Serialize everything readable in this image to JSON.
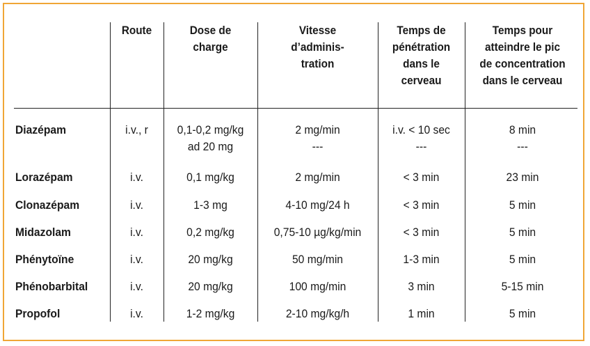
{
  "table": {
    "headers": {
      "route": [
        "Route"
      ],
      "dose": [
        "Dose de",
        "charge"
      ],
      "vitesse": [
        "Vitesse",
        "d’adminis-",
        "tration"
      ],
      "penetration": [
        "Temps de",
        "pénétration",
        "dans le",
        "cerveau"
      ],
      "pic": [
        "Temps pour",
        "atteindre le pic",
        "de concentration",
        "dans le cerveau"
      ]
    },
    "rows": [
      {
        "drug": "Diazépam",
        "route": "i.v., r",
        "dose": "0,1-0,2 mg/kg",
        "dose2": "ad 20 mg",
        "vitesse": "2 mg/min",
        "vitesse2": "---",
        "penetration": "i.v. < 10 sec",
        "penetration2": "---",
        "pic": "8 min",
        "pic2": "---"
      },
      {
        "drug": "Lorazépam",
        "route": "i.v.",
        "dose": "0,1 mg/kg",
        "vitesse": "2 mg/min",
        "penetration": "< 3 min",
        "pic": "23 min"
      },
      {
        "drug": "Clonazépam",
        "route": "i.v.",
        "dose": "1-3 mg",
        "vitesse": "4-10 mg/24 h",
        "penetration": "< 3 min",
        "pic": "5 min"
      },
      {
        "drug": "Midazolam",
        "route": "i.v.",
        "dose": "0,2 mg/kg",
        "vitesse": "0,75-10 µg/kg/min",
        "penetration": "< 3 min",
        "pic": "5 min"
      },
      {
        "drug": "Phénytoïne",
        "route": "i.v.",
        "dose": "20 mg/kg",
        "vitesse": "50 mg/min",
        "penetration": "1-3 min",
        "pic": "5 min"
      },
      {
        "drug": "Phénobarbital",
        "route": "i.v.",
        "dose": "20 mg/kg",
        "vitesse": "100 mg/min",
        "penetration": "3 min",
        "pic": "5-15 min"
      },
      {
        "drug": "Propofol",
        "route": "i.v.",
        "dose": "1-2 mg/kg",
        "vitesse": "2-10 mg/kg/h",
        "penetration": "1 min",
        "pic": "5 min"
      }
    ]
  },
  "colors": {
    "border": "#f0a636",
    "rule": "#222222"
  }
}
